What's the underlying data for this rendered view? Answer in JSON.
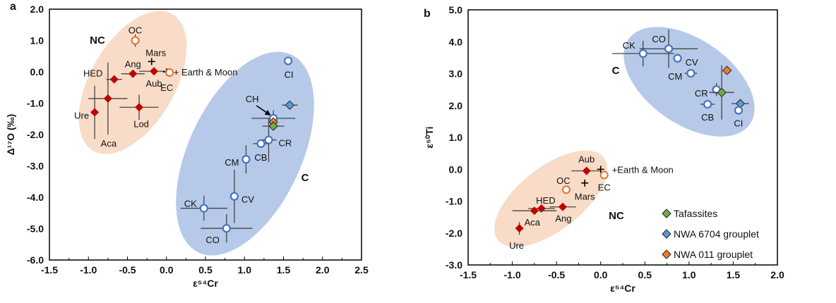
{
  "colors": {
    "nc_fill": "#f8dcc8",
    "c_fill": "#b7c9e8",
    "nc_point": "#c00000",
    "oc_ec": "#e07b39",
    "c_point": "#4472c4",
    "tafassites": "#70ad47",
    "nwa6704": "#5b9bd5",
    "nwa011": "#ed7d31",
    "errbar": "#444444"
  },
  "chart_data": [
    {
      "panel_label": "a",
      "type": "scatter",
      "xlabel": "ε⁵⁴Cr",
      "ylabel": "Δ¹⁷O (‰)",
      "xlim": [
        -1.5,
        2.5
      ],
      "ylim": [
        -6.0,
        2.0
      ],
      "xticks": [
        "-1.5",
        "-1.0",
        "-0.5",
        "0.0",
        "0.5",
        "1.0",
        "1.5",
        "2.0",
        "2.5"
      ],
      "yticks": [
        "2.0",
        "1.0",
        "0.0",
        "-1.0",
        "-2.0",
        "-3.0",
        "-4.0",
        "-5.0",
        "-6.0"
      ],
      "grid": false,
      "groups": [
        {
          "label": "NC"
        },
        {
          "label": "C"
        }
      ],
      "earth_label": "+ Earth & Moon",
      "points": [
        {
          "label": "OC",
          "x": -0.4,
          "y": 1.0,
          "xerr": 0,
          "yerr": 0.2,
          "kind": "open-orange"
        },
        {
          "label": "Mars",
          "x": -0.19,
          "y": 0.33,
          "xerr": 0,
          "yerr": 0,
          "kind": "plus"
        },
        {
          "label": "Ang",
          "x": -0.43,
          "y": -0.06,
          "xerr": 0.15,
          "yerr": 0,
          "kind": "nc"
        },
        {
          "label": "Aub",
          "x": -0.16,
          "y": 0.02,
          "xerr": 0.19,
          "yerr": 0,
          "kind": "nc"
        },
        {
          "label": "",
          "x": 0.0,
          "y": 0.0,
          "xerr": 0,
          "yerr": 0,
          "kind": "plus"
        },
        {
          "label": "EC",
          "x": 0.04,
          "y": -0.02,
          "xerr": 0,
          "yerr": 0,
          "kind": "open-orange"
        },
        {
          "label": "HED",
          "x": -0.67,
          "y": -0.24,
          "xerr": 0.1,
          "yerr": 0,
          "kind": "nc"
        },
        {
          "label": "Aca",
          "x": -0.75,
          "y": -0.85,
          "xerr": 0.25,
          "yerr": 1.15,
          "kind": "nc"
        },
        {
          "label": "Ure",
          "x": -0.92,
          "y": -1.29,
          "xerr": 0,
          "yerr": 0.85,
          "kind": "nc"
        },
        {
          "label": "Lod",
          "x": -0.35,
          "y": -1.13,
          "xerr": 0.25,
          "yerr": 0.4,
          "kind": "nc"
        },
        {
          "label": "CI",
          "x": 1.56,
          "y": 0.35,
          "xerr": 0,
          "yerr": 0,
          "kind": "c"
        },
        {
          "label": "CH",
          "x": 1.37,
          "y": -1.48,
          "xerr": 0.28,
          "yerr": 0.25,
          "kind": "c"
        },
        {
          "label": "",
          "x": 1.58,
          "y": -1.06,
          "xerr": 0.1,
          "yerr": 0,
          "kind": "nwa6704"
        },
        {
          "label": "",
          "x": 1.37,
          "y": -1.6,
          "xerr": 0,
          "yerr": 0,
          "kind": "nwa011"
        },
        {
          "label": "",
          "x": 1.37,
          "y": -1.73,
          "xerr": 0.14,
          "yerr": 0,
          "kind": "tafassites"
        },
        {
          "label": "CR",
          "x": 1.31,
          "y": -2.17,
          "xerr": 0.1,
          "yerr": 0.7,
          "kind": "c"
        },
        {
          "label": "CB",
          "x": 1.21,
          "y": -2.29,
          "xerr": 0.1,
          "yerr": 0,
          "kind": "c"
        },
        {
          "label": "CM",
          "x": 1.02,
          "y": -2.79,
          "xerr": 0.05,
          "yerr": 0.45,
          "kind": "c"
        },
        {
          "label": "CV",
          "x": 0.87,
          "y": -3.97,
          "xerr": 0,
          "yerr": 0.85,
          "kind": "c"
        },
        {
          "label": "CK",
          "x": 0.48,
          "y": -4.35,
          "xerr": 0.3,
          "yerr": 0.4,
          "kind": "c"
        },
        {
          "label": "CO",
          "x": 0.77,
          "y": -4.99,
          "xerr": 0.33,
          "yerr": 0.45,
          "kind": "c"
        }
      ]
    },
    {
      "panel_label": "b",
      "type": "scatter",
      "xlabel": "ε⁵⁴Cr",
      "ylabel": "ε⁵⁰Ti",
      "xlim": [
        -1.5,
        2.0
      ],
      "ylim": [
        -3.0,
        5.0
      ],
      "xticks": [
        "-1.5",
        "-1.0",
        "-0.5",
        "0.0",
        "0.5",
        "1.0",
        "1.5",
        "2.0"
      ],
      "yticks": [
        "5.0",
        "4.0",
        "3.0",
        "2.0",
        "1.0",
        "0.0",
        "-1.0",
        "-2.0",
        "-3.0"
      ],
      "grid": false,
      "groups": [
        {
          "label": "C"
        },
        {
          "label": "NC"
        }
      ],
      "earth_label": "+Earth & Moon",
      "legend": {
        "placement": "bottom-right",
        "items": [
          {
            "label": "Tafassites",
            "kind": "tafassites"
          },
          {
            "label": "NWA 6704 grouplet",
            "kind": "nwa6704"
          },
          {
            "label": "NWA 011 grouplet",
            "kind": "nwa011"
          }
        ]
      },
      "points": [
        {
          "label": "CK",
          "x": 0.48,
          "y": 3.63,
          "xerr": 0.35,
          "yerr": 0.4,
          "kind": "c"
        },
        {
          "label": "CO",
          "x": 0.77,
          "y": 3.78,
          "xerr": 0.33,
          "yerr": 0.6,
          "kind": "c"
        },
        {
          "label": "CV",
          "x": 0.87,
          "y": 3.48,
          "xerr": 0.05,
          "yerr": 0,
          "kind": "c"
        },
        {
          "label": "CM",
          "x": 1.02,
          "y": 3.01,
          "xerr": 0.07,
          "yerr": 0,
          "kind": "c"
        },
        {
          "label": "CR",
          "x": 1.31,
          "y": 2.5,
          "xerr": 0.05,
          "yerr": 0.2,
          "kind": "c"
        },
        {
          "label": "",
          "x": 1.37,
          "y": 2.41,
          "xerr": 0.14,
          "yerr": 0.85,
          "kind": "tafassites"
        },
        {
          "label": "",
          "x": 1.43,
          "y": 3.1,
          "xerr": 0,
          "yerr": 0,
          "kind": "nwa011"
        },
        {
          "label": "",
          "x": 1.58,
          "y": 2.06,
          "xerr": 0.1,
          "yerr": 0,
          "kind": "nwa6704"
        },
        {
          "label": "CB",
          "x": 1.21,
          "y": 2.04,
          "xerr": 0.08,
          "yerr": 0,
          "kind": "c"
        },
        {
          "label": "CI",
          "x": 1.56,
          "y": 1.85,
          "xerr": 0,
          "yerr": 0,
          "kind": "c"
        },
        {
          "label": "Aub",
          "x": -0.16,
          "y": -0.05,
          "xerr": 0.17,
          "yerr": 0,
          "kind": "nc"
        },
        {
          "label": "",
          "x": 0.0,
          "y": 0.0,
          "xerr": 0,
          "yerr": 0,
          "kind": "plus"
        },
        {
          "label": "EC",
          "x": 0.04,
          "y": -0.18,
          "xerr": 0,
          "yerr": 0,
          "kind": "open-orange"
        },
        {
          "label": "Mars",
          "x": -0.18,
          "y": -0.43,
          "xerr": 0,
          "yerr": 0,
          "kind": "plus"
        },
        {
          "label": "OC",
          "x": -0.39,
          "y": -0.64,
          "xerr": 0,
          "yerr": 0,
          "kind": "open-orange"
        },
        {
          "label": "HED",
          "x": -0.67,
          "y": -1.23,
          "xerr": 0.15,
          "yerr": 0,
          "kind": "nc"
        },
        {
          "label": "Aca",
          "x": -0.75,
          "y": -1.3,
          "xerr": 0.25,
          "yerr": 0,
          "kind": "nc"
        },
        {
          "label": "Ang",
          "x": -0.43,
          "y": -1.18,
          "xerr": 0.15,
          "yerr": 0,
          "kind": "nc"
        },
        {
          "label": "Ure",
          "x": -0.92,
          "y": -1.85,
          "xerr": 0,
          "yerr": 0.2,
          "kind": "nc"
        }
      ]
    }
  ]
}
